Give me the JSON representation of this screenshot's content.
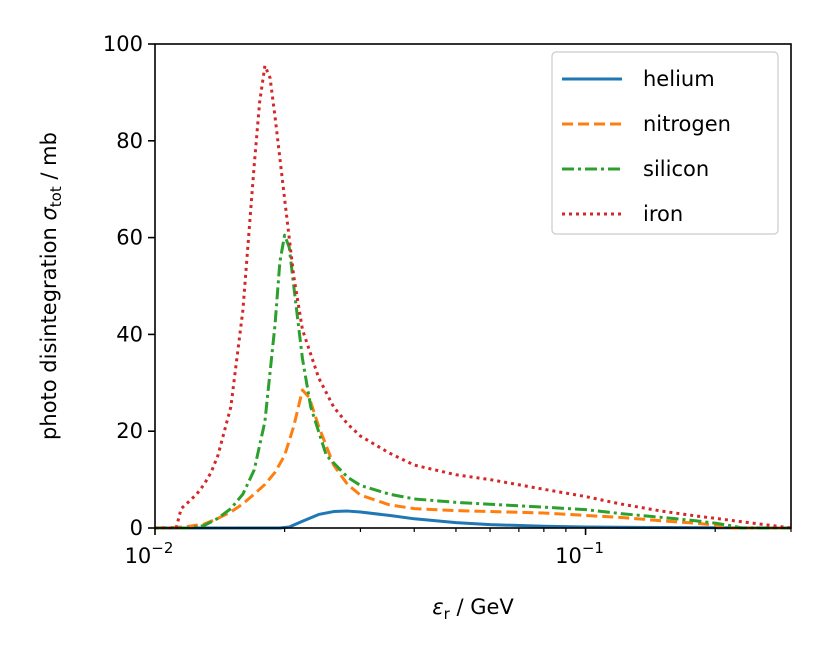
{
  "chart_data": {
    "type": "line",
    "title": "",
    "xscale": "log",
    "xlim": [
      0.01,
      0.3
    ],
    "ylim": [
      0,
      100
    ],
    "xlabel": {
      "symbol": "ε",
      "sub": "r",
      "unit": " / GeV"
    },
    "ylabel": {
      "prefix": "photo disintegration ",
      "symbol": "σ",
      "sub": "tot",
      "unit": " / mb"
    },
    "x_ticks": [
      {
        "value": 0.01,
        "base": "10",
        "exp": "−2"
      },
      {
        "value": 0.1,
        "base": "10",
        "exp": "−1"
      }
    ],
    "y_ticks": [
      {
        "value": 0,
        "label": "0"
      },
      {
        "value": 20,
        "label": "20"
      },
      {
        "value": 40,
        "label": "40"
      },
      {
        "value": 60,
        "label": "60"
      },
      {
        "value": 80,
        "label": "80"
      },
      {
        "value": 100,
        "label": "100"
      }
    ],
    "legend_position": "top-right",
    "series": [
      {
        "name": "helium",
        "color": "#1f77b4",
        "dash": "solid",
        "points": [
          [
            0.01,
            0
          ],
          [
            0.015,
            0
          ],
          [
            0.0195,
            0
          ],
          [
            0.0205,
            0.2
          ],
          [
            0.022,
            1.4
          ],
          [
            0.024,
            2.8
          ],
          [
            0.026,
            3.4
          ],
          [
            0.028,
            3.5
          ],
          [
            0.03,
            3.3
          ],
          [
            0.035,
            2.6
          ],
          [
            0.04,
            1.9
          ],
          [
            0.05,
            1.1
          ],
          [
            0.06,
            0.7
          ],
          [
            0.08,
            0.35
          ],
          [
            0.1,
            0.2
          ],
          [
            0.15,
            0.1
          ],
          [
            0.2,
            0.05
          ],
          [
            0.3,
            0
          ]
        ]
      },
      {
        "name": "nitrogen",
        "color": "#ff7f0e",
        "dash": "dashed",
        "points": [
          [
            0.01,
            0
          ],
          [
            0.0117,
            0.2
          ],
          [
            0.013,
            0.8
          ],
          [
            0.014,
            2.0
          ],
          [
            0.015,
            3.3
          ],
          [
            0.016,
            5.0
          ],
          [
            0.017,
            7.0
          ],
          [
            0.018,
            9.0
          ],
          [
            0.019,
            11.5
          ],
          [
            0.02,
            15.0
          ],
          [
            0.021,
            21.0
          ],
          [
            0.022,
            28.5
          ],
          [
            0.0228,
            27.0
          ],
          [
            0.024,
            21.0
          ],
          [
            0.026,
            13.0
          ],
          [
            0.028,
            9.0
          ],
          [
            0.03,
            6.8
          ],
          [
            0.035,
            4.8
          ],
          [
            0.04,
            4.0
          ],
          [
            0.05,
            3.6
          ],
          [
            0.06,
            3.4
          ],
          [
            0.08,
            3.1
          ],
          [
            0.1,
            2.6
          ],
          [
            0.12,
            2.2
          ],
          [
            0.15,
            1.5
          ],
          [
            0.18,
            1.0
          ],
          [
            0.2,
            0.6
          ],
          [
            0.21,
            0
          ],
          [
            0.3,
            0
          ]
        ]
      },
      {
        "name": "silicon",
        "color": "#2ca02c",
        "dash": "dashdot",
        "points": [
          [
            0.01,
            0
          ],
          [
            0.012,
            0
          ],
          [
            0.013,
            0.5
          ],
          [
            0.014,
            2.0
          ],
          [
            0.015,
            4.0
          ],
          [
            0.016,
            7.0
          ],
          [
            0.017,
            12.0
          ],
          [
            0.018,
            22.0
          ],
          [
            0.019,
            42.0
          ],
          [
            0.0195,
            55.0
          ],
          [
            0.02,
            60.5
          ],
          [
            0.0205,
            58.0
          ],
          [
            0.021,
            50.0
          ],
          [
            0.022,
            35.0
          ],
          [
            0.023,
            25.0
          ],
          [
            0.025,
            15.0
          ],
          [
            0.028,
            10.5
          ],
          [
            0.03,
            8.8
          ],
          [
            0.035,
            7.0
          ],
          [
            0.04,
            6.0
          ],
          [
            0.05,
            5.3
          ],
          [
            0.06,
            4.9
          ],
          [
            0.08,
            4.3
          ],
          [
            0.1,
            3.8
          ],
          [
            0.12,
            3.0
          ],
          [
            0.15,
            2.2
          ],
          [
            0.18,
            1.5
          ],
          [
            0.2,
            1.0
          ],
          [
            0.22,
            0.4
          ],
          [
            0.23,
            0
          ],
          [
            0.3,
            0
          ]
        ]
      },
      {
        "name": "iron",
        "color": "#d62728",
        "dash": "dotted",
        "points": [
          [
            0.01,
            0
          ],
          [
            0.0112,
            0
          ],
          [
            0.0115,
            4.0
          ],
          [
            0.012,
            5.5
          ],
          [
            0.0125,
            7.0
          ],
          [
            0.013,
            9.0
          ],
          [
            0.0135,
            11.5
          ],
          [
            0.014,
            15.0
          ],
          [
            0.015,
            25.0
          ],
          [
            0.016,
            45.0
          ],
          [
            0.017,
            75.0
          ],
          [
            0.0175,
            88.0
          ],
          [
            0.018,
            95.5
          ],
          [
            0.0185,
            93.0
          ],
          [
            0.019,
            85.0
          ],
          [
            0.02,
            68.0
          ],
          [
            0.021,
            52.0
          ],
          [
            0.022,
            41.0
          ],
          [
            0.024,
            31.0
          ],
          [
            0.026,
            25.0
          ],
          [
            0.028,
            21.5
          ],
          [
            0.03,
            19.0
          ],
          [
            0.035,
            15.5
          ],
          [
            0.04,
            13.0
          ],
          [
            0.05,
            11.0
          ],
          [
            0.06,
            10.0
          ],
          [
            0.08,
            8.0
          ],
          [
            0.1,
            6.5
          ],
          [
            0.12,
            5.0
          ],
          [
            0.15,
            3.5
          ],
          [
            0.18,
            2.5
          ],
          [
            0.2,
            2.0
          ],
          [
            0.3,
            0
          ]
        ]
      }
    ]
  }
}
